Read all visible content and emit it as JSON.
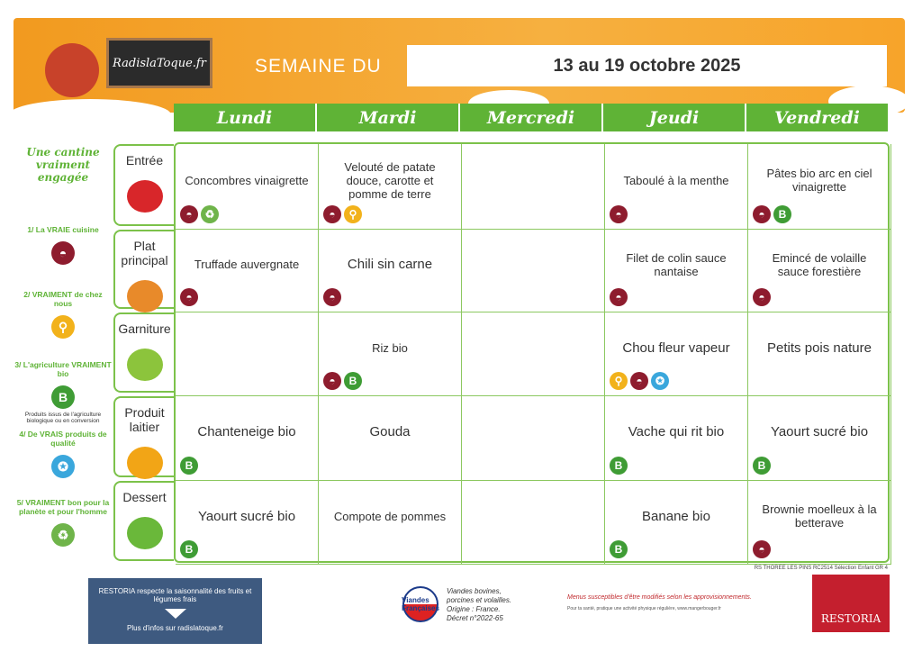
{
  "header": {
    "logo": "RadislaToque.fr",
    "week_label": "SEMAINE DU",
    "week": "13 au 19 octobre 2025"
  },
  "days": [
    "Lundi",
    "Mardi",
    "Mercredi",
    "Jeudi",
    "Vendredi"
  ],
  "rows": [
    {
      "label": "Entrée",
      "image": "tomato",
      "cells": [
        {
          "text": "Concombres vinaigrette",
          "icons": [
            "cook",
            "planet"
          ]
        },
        {
          "text": "Velouté de patate douce, carotte et pomme de terre",
          "icons": [
            "cook",
            "local"
          ]
        },
        {
          "text": "",
          "icons": []
        },
        {
          "text": "Taboulé à la menthe",
          "icons": [
            "cook"
          ]
        },
        {
          "text": "Pâtes bio arc en ciel vinaigrette",
          "icons": [
            "cook",
            "bio"
          ]
        }
      ]
    },
    {
      "label": "Plat principal",
      "image": "roast-chicken",
      "cells": [
        {
          "text": "Truffade auvergnate",
          "icons": [
            "cook"
          ]
        },
        {
          "text": "Chili sin carne",
          "icons": [
            "cook"
          ],
          "big": true
        },
        {
          "text": "",
          "icons": []
        },
        {
          "text": "Filet de colin sauce nantaise",
          "icons": [
            "cook"
          ]
        },
        {
          "text": "Emincé de volaille sauce forestière",
          "icons": [
            "cook"
          ]
        }
      ]
    },
    {
      "label": "Garniture",
      "image": "pea-pod",
      "cells": [
        {
          "text": "",
          "icons": []
        },
        {
          "text": "Riz bio",
          "icons": [
            "cook",
            "bio"
          ]
        },
        {
          "text": "",
          "icons": []
        },
        {
          "text": "Chou fleur vapeur",
          "icons": [
            "local",
            "cook",
            "quality"
          ],
          "big": true
        },
        {
          "text": "Petits pois nature",
          "icons": [],
          "big": true
        }
      ]
    },
    {
      "label": "Produit laitier",
      "image": "cheese",
      "cells": [
        {
          "text": "Chanteneige bio",
          "icons": [
            "bio"
          ],
          "big": true
        },
        {
          "text": "Gouda",
          "icons": [],
          "big": true
        },
        {
          "text": "",
          "icons": []
        },
        {
          "text": "Vache qui rit bio",
          "icons": [
            "bio"
          ],
          "big": true
        },
        {
          "text": "Yaourt sucré bio",
          "icons": [
            "bio"
          ],
          "big": true
        }
      ]
    },
    {
      "label": "Dessert",
      "image": "apple",
      "cells": [
        {
          "text": "Yaourt sucré bio",
          "icons": [
            "bio"
          ],
          "big": true
        },
        {
          "text": "Compote de pommes",
          "icons": []
        },
        {
          "text": "",
          "icons": []
        },
        {
          "text": "Banane bio",
          "icons": [
            "bio"
          ],
          "big": true
        },
        {
          "text": "Brownie moelleux à la betterave",
          "icons": [
            "cook"
          ]
        }
      ]
    }
  ],
  "legend": {
    "title": "Une cantine vraiment engagée",
    "items": [
      {
        "label": "1/ La VRAIE cuisine",
        "icon": "cook"
      },
      {
        "label": "2/ VRAIMENT de chez nous",
        "icon": "local"
      },
      {
        "label": "3/ L'agriculture VRAIMENT bio",
        "icon": "bio",
        "note": "Produits issus de l'agriculture biologique ou en conversion"
      },
      {
        "label": "4/ De VRAIS produits de qualité",
        "icon": "quality"
      },
      {
        "label": "5/ VRAIMENT bon pour la planète et pour l'homme",
        "icon": "planet"
      }
    ]
  },
  "footer": {
    "ref": "RS THOREE LES PINS RC2514 Sélection Enfant GR 4",
    "banner_line1": "RESTORIA respecte la saisonnalité des fruits et légumes frais",
    "banner_line2": "Plus d'infos sur radislatoque.fr",
    "vf_logo": "Viandes Françaises",
    "vf_text": "Viandes bovines, porcines et volailles. Origine : France. Décret n°2022-65",
    "warning": "Menus susceptibles d'être modifiés selon les approvisionnements.",
    "health": "Pour ta santé, pratique une activité physique régulière, www.mangerbouger.fr",
    "brand": "RESTORIA"
  },
  "colors": {
    "orange": "#f29a1f",
    "green": "#5fb336",
    "cook": "#8e1c2e",
    "local": "#f2b21b",
    "bio": "#3f9c35",
    "quality": "#3aa7dc",
    "planet": "#6fb44a",
    "restoria": "#c41f2e"
  }
}
